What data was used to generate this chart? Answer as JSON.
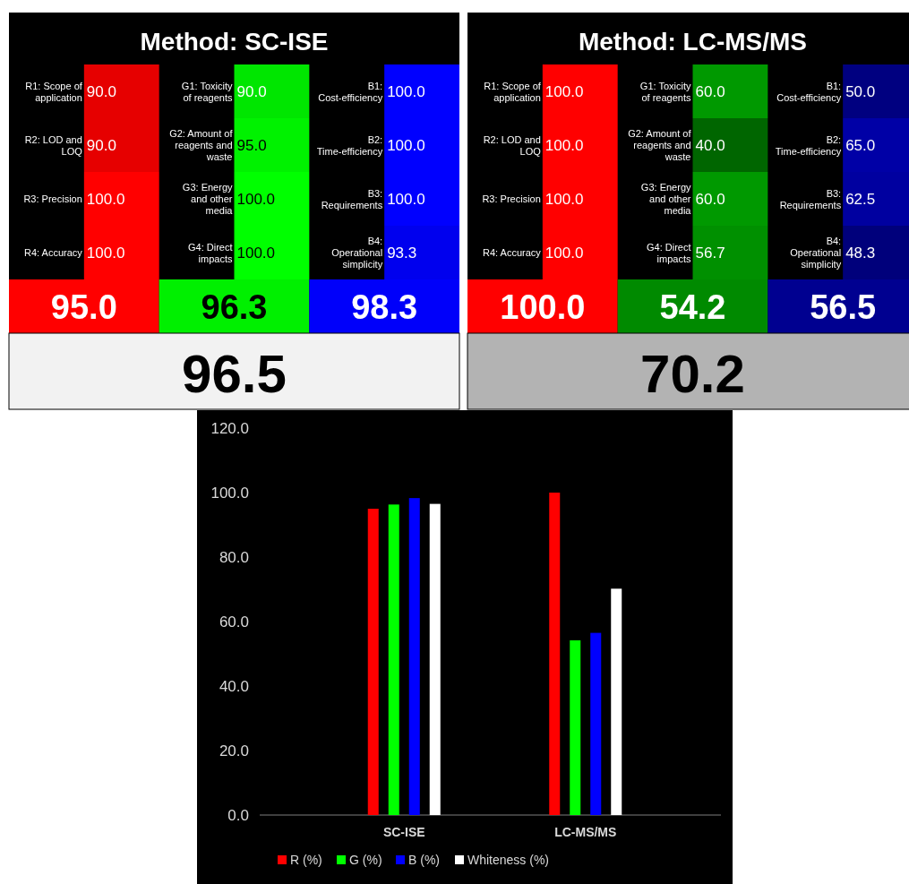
{
  "chart_data": [
    {
      "type": "other",
      "title": "Method: SC-ISE",
      "annotations": [
        "R1: Scope of application",
        "90.0",
        "R2: LOD and LOQ",
        "90.0",
        "R3: Precision",
        "100.0",
        "R4: Accuracy",
        "100.0",
        "G1: Toxicity of reagents",
        "90.0",
        "G2: Amount of reagents and waste",
        "95.0",
        "G3: Energy and other media",
        "100.0",
        "G4: Direct impacts",
        "100.0",
        "B1: Cost-efficiency",
        "100.0",
        "B2: Time-efficiency",
        "100.0",
        "B3: Requirements",
        "100.0",
        "B4: Operational simplicity",
        "93.3",
        "95.0",
        "96.3",
        "98.3",
        "96.5"
      ],
      "colors": [
        "#e60000",
        "#e60000",
        "#ff0000",
        "#ff0000",
        "#00e600",
        "#00f200",
        "#00ff00",
        "#00ff00",
        "#0000ff",
        "#0000ff",
        "#0000ff",
        "#0000ee",
        "#ff0000",
        "#00f000",
        "#0000fa",
        "#f2f2f2"
      ]
    },
    {
      "type": "other",
      "title": "Method: LC-MS/MS",
      "annotations": [
        "R1: Scope of application",
        "100.0",
        "R2: LOD and LOQ",
        "100.0",
        "R3: Precision",
        "100.0",
        "R4: Accuracy",
        "100.0",
        "G1: Toxicity of reagents",
        "60.0",
        "G2: Amount of reagents and waste",
        "40.0",
        "G3: Energy and other media",
        "60.0",
        "G4: Direct impacts",
        "56.7",
        "B1: Cost-efficiency",
        "50.0",
        "B2: Time-efficiency",
        "65.0",
        "B3: Requirements",
        "62.5",
        "B4: Operational simplicity",
        "48.3",
        "100.0",
        "54.2",
        "56.5",
        "70.2"
      ],
      "colors": [
        "#ff0000",
        "#ff0000",
        "#ff0000",
        "#ff0000",
        "#009900",
        "#006600",
        "#009900",
        "#009000",
        "#000080",
        "#0000a6",
        "#0000a0",
        "#00007b",
        "#ff0000",
        "#008a00",
        "#000090",
        "#b3b3b3"
      ]
    },
    {
      "type": "bar",
      "categories": [
        "SC-ISE",
        "LC-MS/MS"
      ],
      "series": [
        {
          "name": "R (%)",
          "color": "#ff0000",
          "values": [
            95.0,
            100.0
          ]
        },
        {
          "name": "G (%)",
          "color": "#00ff00",
          "values": [
            96.3,
            54.2
          ]
        },
        {
          "name": "B (%)",
          "color": "#0000ff",
          "values": [
            98.3,
            56.5
          ]
        },
        {
          "name": "Whiteness (%)",
          "color": "#ffffff",
          "values": [
            96.5,
            70.2
          ]
        }
      ],
      "ylim": [
        0,
        120
      ],
      "yticks": [
        {
          "value": 0,
          "label": "0.0"
        },
        {
          "value": 20,
          "label": "20.0"
        },
        {
          "value": 40,
          "label": "40.0"
        },
        {
          "value": 60,
          "label": "60.0"
        },
        {
          "value": 80,
          "label": "80.0"
        },
        {
          "value": 100,
          "label": "100.0"
        },
        {
          "value": 120,
          "label": "120.0"
        }
      ],
      "grid": false,
      "legend": "bottom"
    }
  ]
}
